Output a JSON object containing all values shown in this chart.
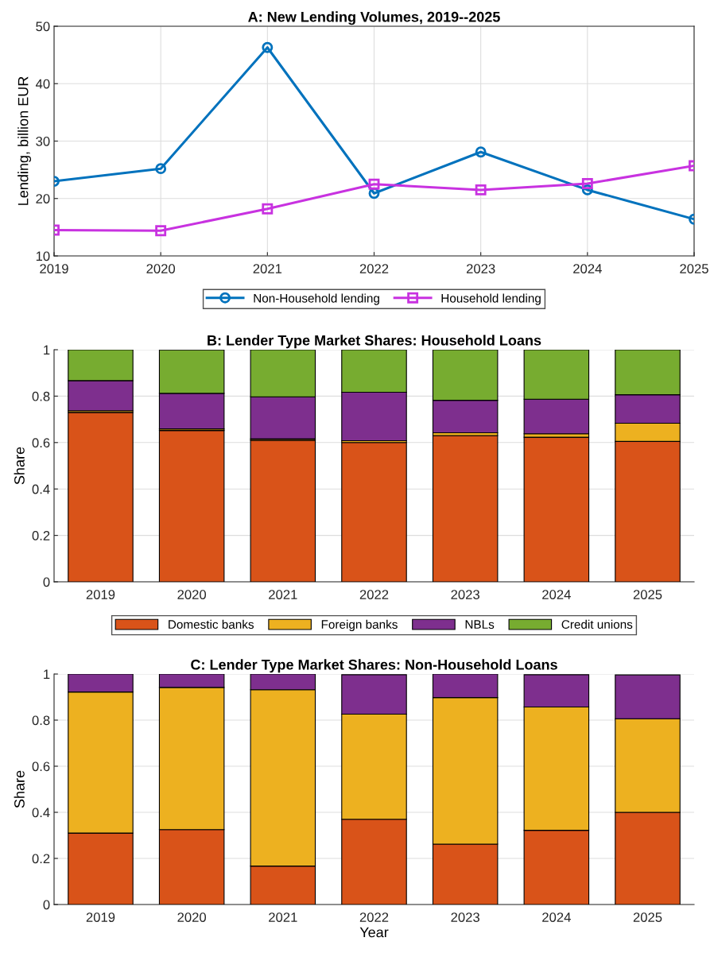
{
  "chart_data": [
    {
      "type": "line",
      "title": "A: New Lending Volumes, 2019--2025",
      "ylabel": "Lending, billion EUR",
      "x": [
        2019,
        2020,
        2021,
        2022,
        2023,
        2024,
        2025
      ],
      "xlim": [
        2019,
        2025
      ],
      "xticks": [
        2019,
        2020,
        2021,
        2022,
        2023,
        2024,
        2025
      ],
      "ylim": [
        10,
        50
      ],
      "yticks": [
        10,
        20,
        30,
        40,
        50
      ],
      "grid": true,
      "legend": "bottom",
      "line_style": "solid",
      "series": [
        {
          "name": "Non-Household lending",
          "color": "#0072bd",
          "marker": "circle",
          "values": [
            23.0,
            25.2,
            46.3,
            20.9,
            28.1,
            21.5,
            16.4
          ]
        },
        {
          "name": "Household lending",
          "color": "#c832e0",
          "marker": "square",
          "values": [
            14.5,
            14.4,
            18.2,
            22.5,
            21.5,
            22.6,
            25.7
          ]
        }
      ]
    },
    {
      "type": "bar",
      "stacked": true,
      "title": "B: Lender Type Market Shares: Household Loans",
      "ylabel": "Share",
      "categories": [
        "2019",
        "2020",
        "2021",
        "2022",
        "2023",
        "2024",
        "2025"
      ],
      "ylim": [
        0,
        1
      ],
      "yticks": [
        0,
        0.2,
        0.4,
        0.6,
        0.8,
        1
      ],
      "grid": "y",
      "legend": "bottom",
      "series": [
        {
          "name": "Domestic banks",
          "color": "#d95319",
          "values": [
            0.73,
            0.652,
            0.61,
            0.6,
            0.63,
            0.623,
            0.605
          ]
        },
        {
          "name": "Foreign banks",
          "color": "#edb120",
          "values": [
            0.007,
            0.007,
            0.006,
            0.008,
            0.012,
            0.015,
            0.078
          ]
        },
        {
          "name": "NBLs",
          "color": "#7e2f8e",
          "values": [
            0.13,
            0.153,
            0.181,
            0.209,
            0.14,
            0.149,
            0.123
          ]
        },
        {
          "name": "Credit unions",
          "color": "#77ac30",
          "values": [
            0.133,
            0.187,
            0.203,
            0.183,
            0.218,
            0.213,
            0.194
          ]
        }
      ]
    },
    {
      "type": "bar",
      "stacked": true,
      "title": "C: Lender Type Market Shares: Non-Household Loans",
      "xlabel": "Year",
      "ylabel": "Share",
      "categories": [
        "2019",
        "2020",
        "2021",
        "2022",
        "2023",
        "2024",
        "2025"
      ],
      "ylim": [
        0,
        1
      ],
      "yticks": [
        0,
        0.2,
        0.4,
        0.6,
        0.8,
        1
      ],
      "grid": "y",
      "series": [
        {
          "color": "#d95319",
          "values": [
            0.31,
            0.325,
            0.167,
            0.37,
            0.262,
            0.322,
            0.4
          ]
        },
        {
          "color": "#edb120",
          "values": [
            0.612,
            0.617,
            0.765,
            0.456,
            0.636,
            0.535,
            0.406
          ]
        },
        {
          "color": "#7e2f8e",
          "values": [
            0.078,
            0.058,
            0.068,
            0.171,
            0.102,
            0.14,
            0.19
          ]
        },
        {
          "color": "#77ac30",
          "values": [
            null,
            null,
            null,
            null,
            null,
            null,
            null
          ]
        }
      ]
    }
  ]
}
